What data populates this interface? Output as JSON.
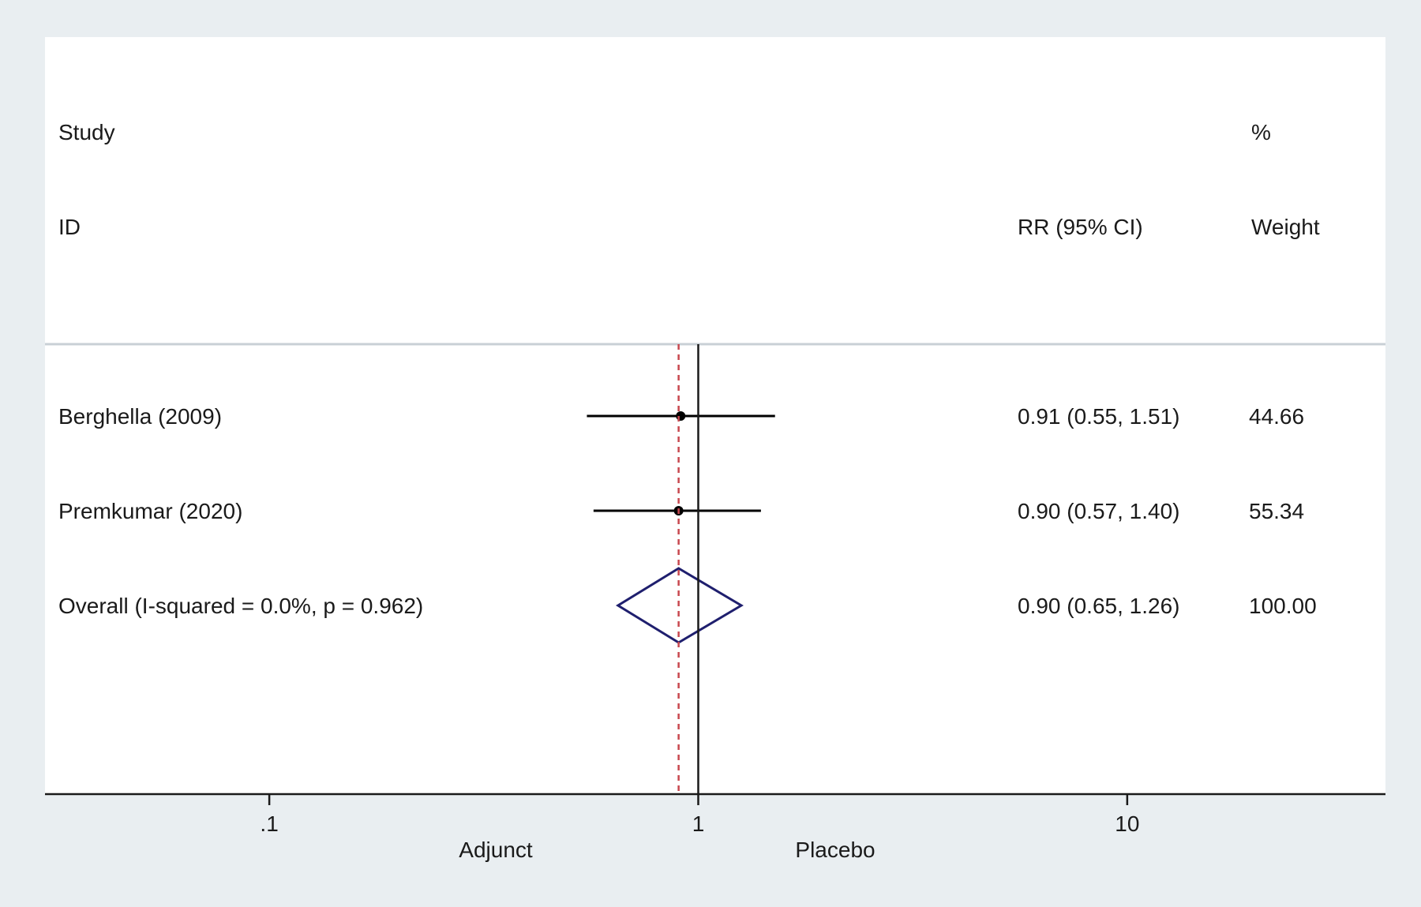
{
  "chart_data": {
    "type": "forest",
    "scale": "log",
    "xlim": [
      0.03,
      40
    ],
    "xticks": [
      {
        "value": 0.1,
        "label": ".1"
      },
      {
        "value": 1,
        "label": "1"
      },
      {
        "value": 10,
        "label": "10"
      }
    ],
    "header": {
      "study_line1": "Study",
      "study_line2": "ID",
      "effect_col": "RR (95% CI)",
      "weight_line1": "%",
      "weight_line2": "Weight"
    },
    "studies": [
      {
        "id": "Berghella (2009)",
        "rr": 0.91,
        "lower": 0.55,
        "upper": 1.51,
        "ci_text": "0.91 (0.55, 1.51)",
        "weight": "44.66"
      },
      {
        "id": "Premkumar (2020)",
        "rr": 0.9,
        "lower": 0.57,
        "upper": 1.4,
        "ci_text": "0.90 (0.57, 1.40)",
        "weight": "55.34"
      }
    ],
    "overall": {
      "label": "Overall  (I-squared = 0.0%, p = 0.962)",
      "rr": 0.9,
      "lower": 0.65,
      "upper": 1.26,
      "ci_text": "0.90 (0.65, 1.26)",
      "weight": "100.00"
    },
    "null_line": 1,
    "favours_left": "Adjunct",
    "favours_right": "Placebo",
    "colors": {
      "background": "#e9eef1",
      "panel": "#ffffff",
      "axis": "#1a1a1a",
      "point": "#000000",
      "diamond": "#1f1f6e",
      "overall_line": "#c8484f",
      "separator": "#c9d0d6"
    }
  }
}
